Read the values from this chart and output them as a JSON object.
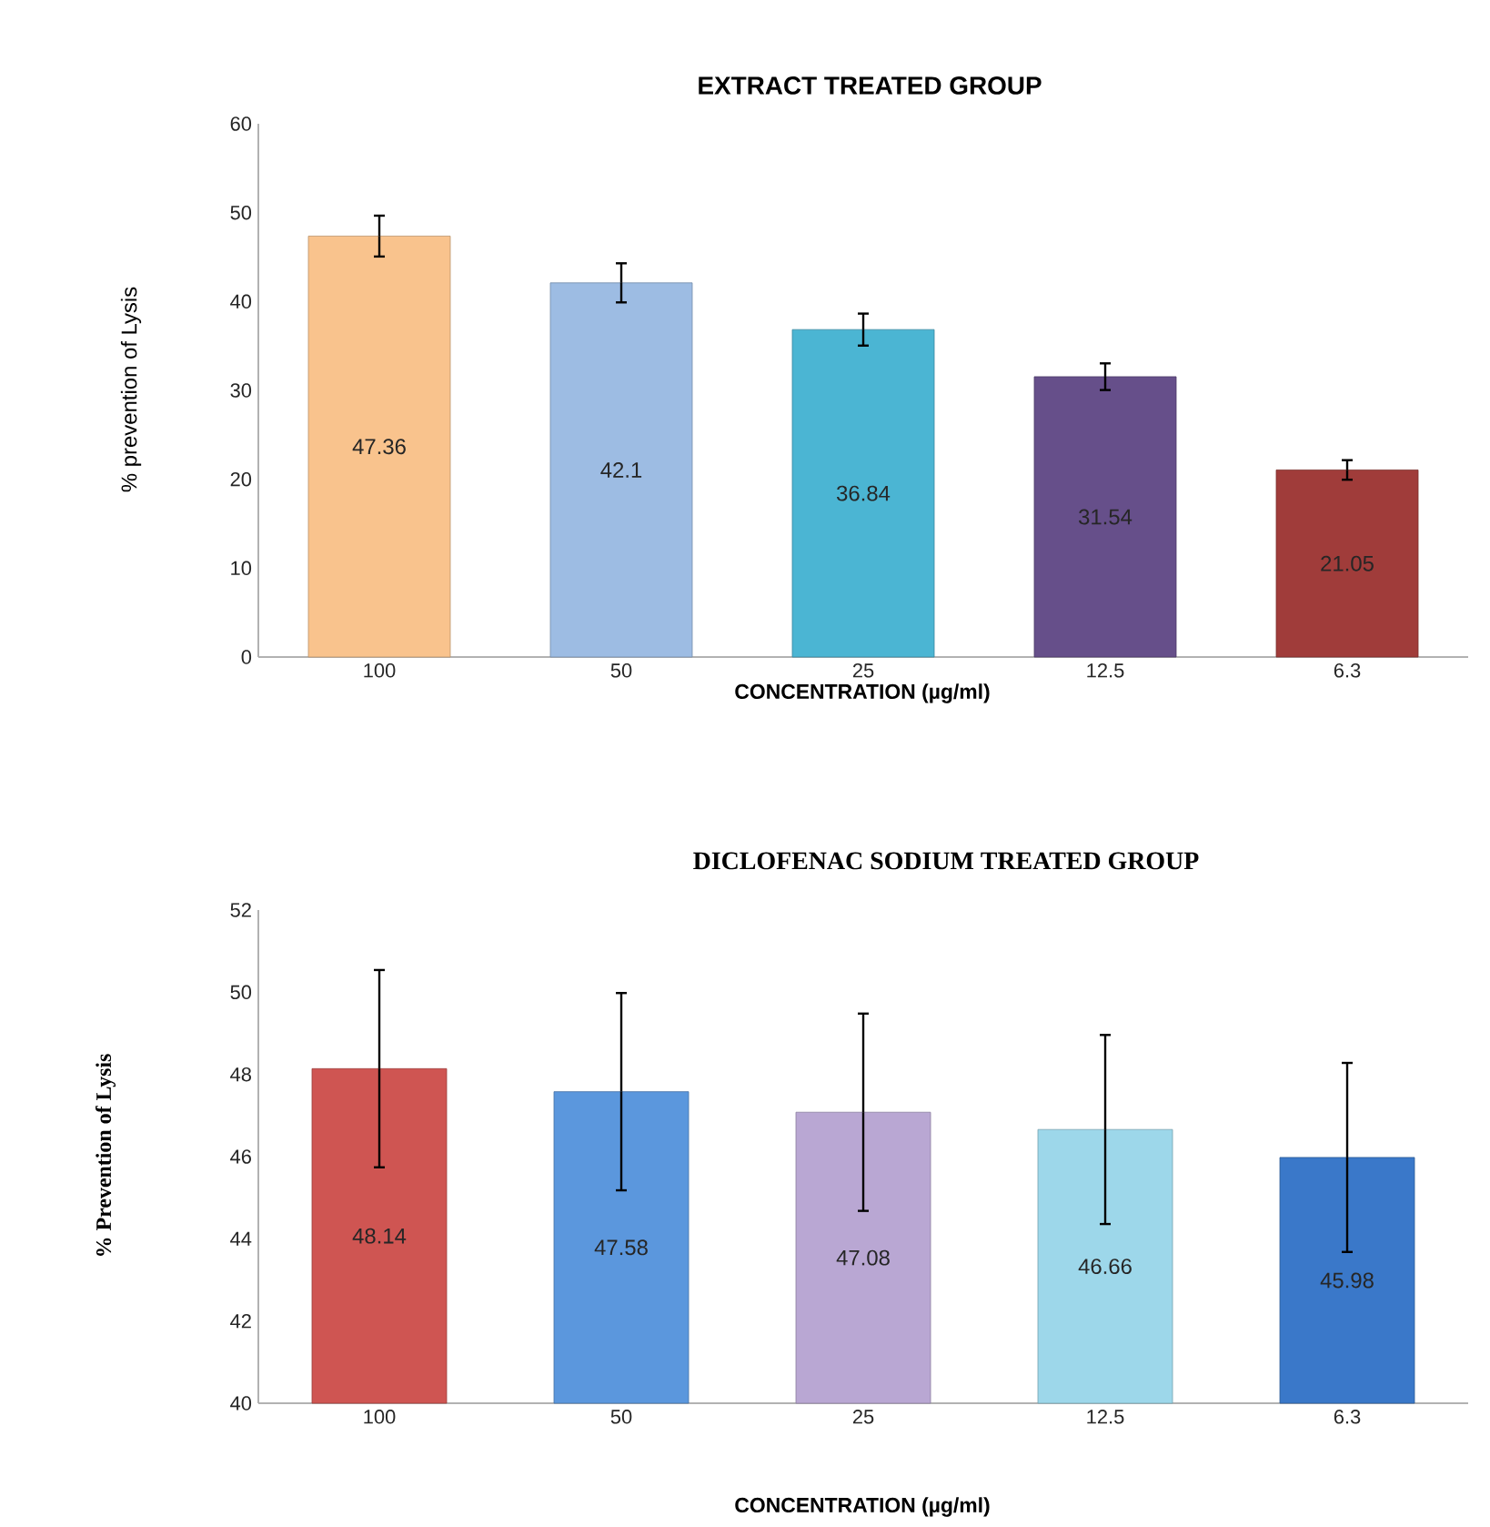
{
  "chart_data": [
    {
      "type": "bar",
      "title": "EXTRACT TREATED GROUP",
      "xlabel": "CONCENTRATION (µg/ml)",
      "ylabel": "% prevention of Lysis",
      "categories": [
        "100",
        "50",
        "25",
        "12.5",
        "6.3"
      ],
      "values": [
        47.36,
        42.1,
        36.84,
        31.54,
        21.05
      ],
      "errors": [
        2.3,
        2.2,
        1.8,
        1.5,
        1.1
      ],
      "colors": [
        "#f9c38d",
        "#9dbce3",
        "#4bb5d3",
        "#664f8a",
        "#a03c3a"
      ],
      "ylim": [
        0,
        60
      ],
      "yticks": [
        0,
        10,
        20,
        30,
        40,
        50,
        60
      ],
      "data_labels": true
    },
    {
      "type": "bar",
      "title": "DICLOFENAC SODIUM TREATED GROUP",
      "xlabel": "CONCENTRATION (µg/ml)",
      "ylabel": "% Prevention of Lysis",
      "categories": [
        "100",
        "50",
        "25",
        "12.5",
        "6.3"
      ],
      "values": [
        48.14,
        47.58,
        47.08,
        46.66,
        45.98
      ],
      "errors": [
        2.4,
        2.4,
        2.4,
        2.3,
        2.3
      ],
      "colors": [
        "#cf5552",
        "#5b97dd",
        "#b9a7d3",
        "#9dd7ea",
        "#3a78c9"
      ],
      "ylim": [
        40,
        52
      ],
      "yticks": [
        40,
        42,
        44,
        46,
        48,
        50,
        52
      ],
      "data_labels": true
    }
  ]
}
